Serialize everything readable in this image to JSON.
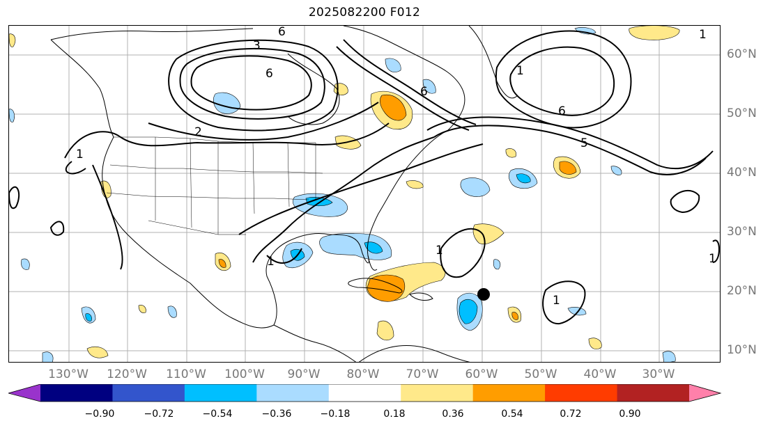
{
  "title": "2025082200 F012",
  "lon_labels": [
    "130°W",
    "120°W",
    "110°W",
    "100°W",
    "90°W",
    "80°W",
    "70°W",
    "60°W",
    "50°W",
    "40°W",
    "30°W"
  ],
  "lat_labels": [
    "60°N",
    "50°N",
    "40°N",
    "30°N",
    "20°N",
    "10°N"
  ],
  "colorbar": {
    "colors": [
      "#9933cc",
      "#000080",
      "#3355cc",
      "#00bfff",
      "#aadcff",
      "#ffffff",
      "#ffe98a",
      "#ff9d00",
      "#ff3c00",
      "#b22222",
      "#ff80aa"
    ],
    "tick_labels": [
      "−0.90",
      "−0.72",
      "−0.54",
      "−0.36",
      "−0.18",
      "0.18",
      "0.36",
      "0.54",
      "0.72",
      "0.90"
    ]
  },
  "contour_labels": [
    "6",
    "3",
    "6",
    "2",
    "1",
    "1",
    "6",
    "1",
    "1",
    "1",
    "6",
    "5",
    "1",
    "1"
  ],
  "marker": {
    "lon": "60°W",
    "lat": "19.5°N"
  },
  "colors": {
    "positive_light": "#ffe98a",
    "positive_mid": "#ff9d00",
    "negative_light": "#aadcff",
    "negative_mid": "#00bfff",
    "grid": "#b0b0b0",
    "contour": "#000000"
  }
}
